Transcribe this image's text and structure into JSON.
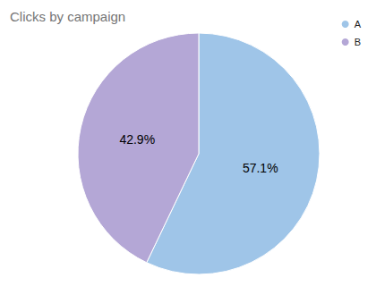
{
  "chart_data": {
    "type": "pie",
    "title": "Clicks by campaign",
    "categories": [
      "A",
      "B"
    ],
    "values": [
      57.1,
      42.9
    ],
    "value_labels": [
      "57.1%",
      "42.9%"
    ],
    "colors": [
      "#9fc5e8",
      "#b4a7d6"
    ],
    "data_labels": true,
    "legend": "top-right"
  }
}
